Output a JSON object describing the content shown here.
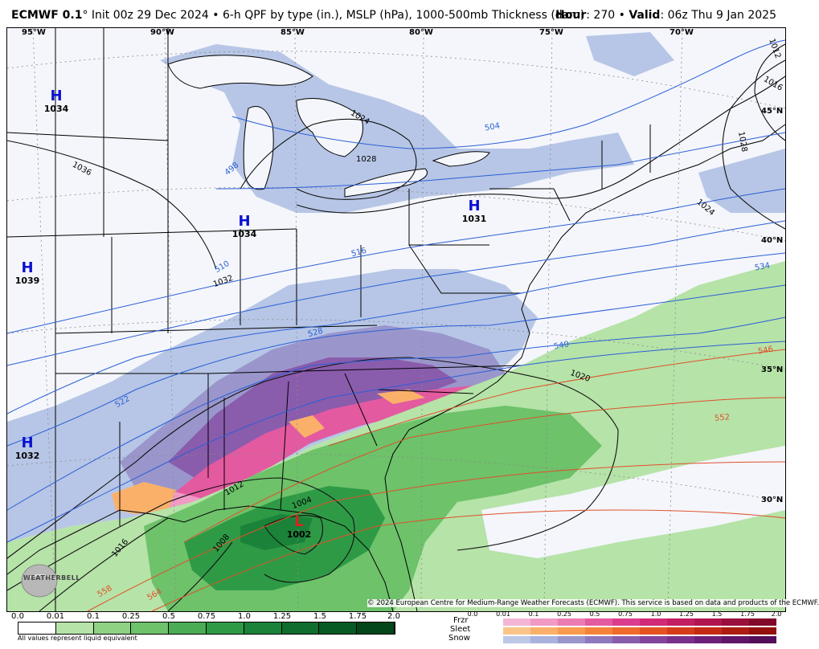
{
  "header": {
    "model": "ECMWF 0.1",
    "degree": "°",
    "init": " Init 00z 29 Dec 2024 • 6-h QPF by type (in.), MSLP (hPa), 1000-500mb Thickness (dam)",
    "hour_label": "Hour",
    "hour_value": ": 270 • ",
    "valid_label": "Valid",
    "valid_value": ": 06z Thu 9 Jan 2025"
  },
  "map": {
    "lon_labels": [
      "95°W",
      "90°W",
      "85°W",
      "80°W",
      "75°W",
      "70°W"
    ],
    "lat_labels": [
      "45°N",
      "40°N",
      "35°N",
      "30°N"
    ],
    "pressure_centers": [
      {
        "type": "H",
        "value": "1034",
        "color": "#0a10d0"
      },
      {
        "type": "H",
        "value": "1039",
        "color": "#0a10d0"
      },
      {
        "type": "H",
        "value": "1034",
        "color": "#0a10d0"
      },
      {
        "type": "H",
        "value": "1031",
        "color": "#0a10d0"
      },
      {
        "type": "H",
        "value": "1032",
        "color": "#0a10d0"
      },
      {
        "type": "L",
        "value": "1002",
        "color": "#e02020"
      }
    ],
    "isobar_labels": [
      "1036",
      "1024",
      "1028",
      "1032",
      "1024",
      "1020",
      "1016",
      "1012",
      "1028",
      "1016",
      "1008",
      "1004",
      "1012"
    ],
    "thickness_labels_blue": [
      "498",
      "504",
      "510",
      "516",
      "522",
      "528",
      "534",
      "540"
    ],
    "thickness_labels_red": [
      "546",
      "552",
      "558",
      "564"
    ],
    "copyright": "© 2024 European Centre for Medium-Range Weather Forecasts (ECMWF). This service is based on data and products of the ECMWF.",
    "logo_text": "WEATHERBELL"
  },
  "legend": {
    "qpf_ticks": [
      "0.0",
      "0.01",
      "0.1",
      "0.25",
      "0.5",
      "0.75",
      "1.0",
      "1.25",
      "1.5",
      "1.75",
      "2.0"
    ],
    "qpf_colors": [
      "#ffffff",
      "#b6e3a8",
      "#8fd283",
      "#6dc26a",
      "#4aad55",
      "#2f9a46",
      "#1a8339",
      "#0f6d2e",
      "#075a23",
      "#03461a"
    ],
    "qpf_note": "All values represent liquid equivalent",
    "ptype_ticks": [
      "0.0",
      "0.01",
      "0.1",
      "0.25",
      "0.5",
      "0.75",
      "1.0",
      "1.25",
      "1.5",
      "1.75",
      "2.0"
    ],
    "ptype_names": [
      "Frzr",
      "Sleet",
      "Snow"
    ],
    "frzr_colors": [
      "#f4b6d4",
      "#f09ac4",
      "#ea7cb2",
      "#e35aa0",
      "#dc3c8e",
      "#d02a78",
      "#c21e64",
      "#b0154f",
      "#9a0e3c",
      "#82082a"
    ],
    "sleet_colors": [
      "#fbc58a",
      "#fbb06a",
      "#f99a4c",
      "#f5823a",
      "#ef6a2c",
      "#e45222",
      "#d63c1a",
      "#c42a14",
      "#ac1c10",
      "#94100c"
    ],
    "snow_colors": [
      "#bcc8e6",
      "#a8b2dc",
      "#9a96cc",
      "#9078bc",
      "#8a5cac",
      "#82449c",
      "#78308c",
      "#6c207a",
      "#601668",
      "#520e56"
    ]
  }
}
